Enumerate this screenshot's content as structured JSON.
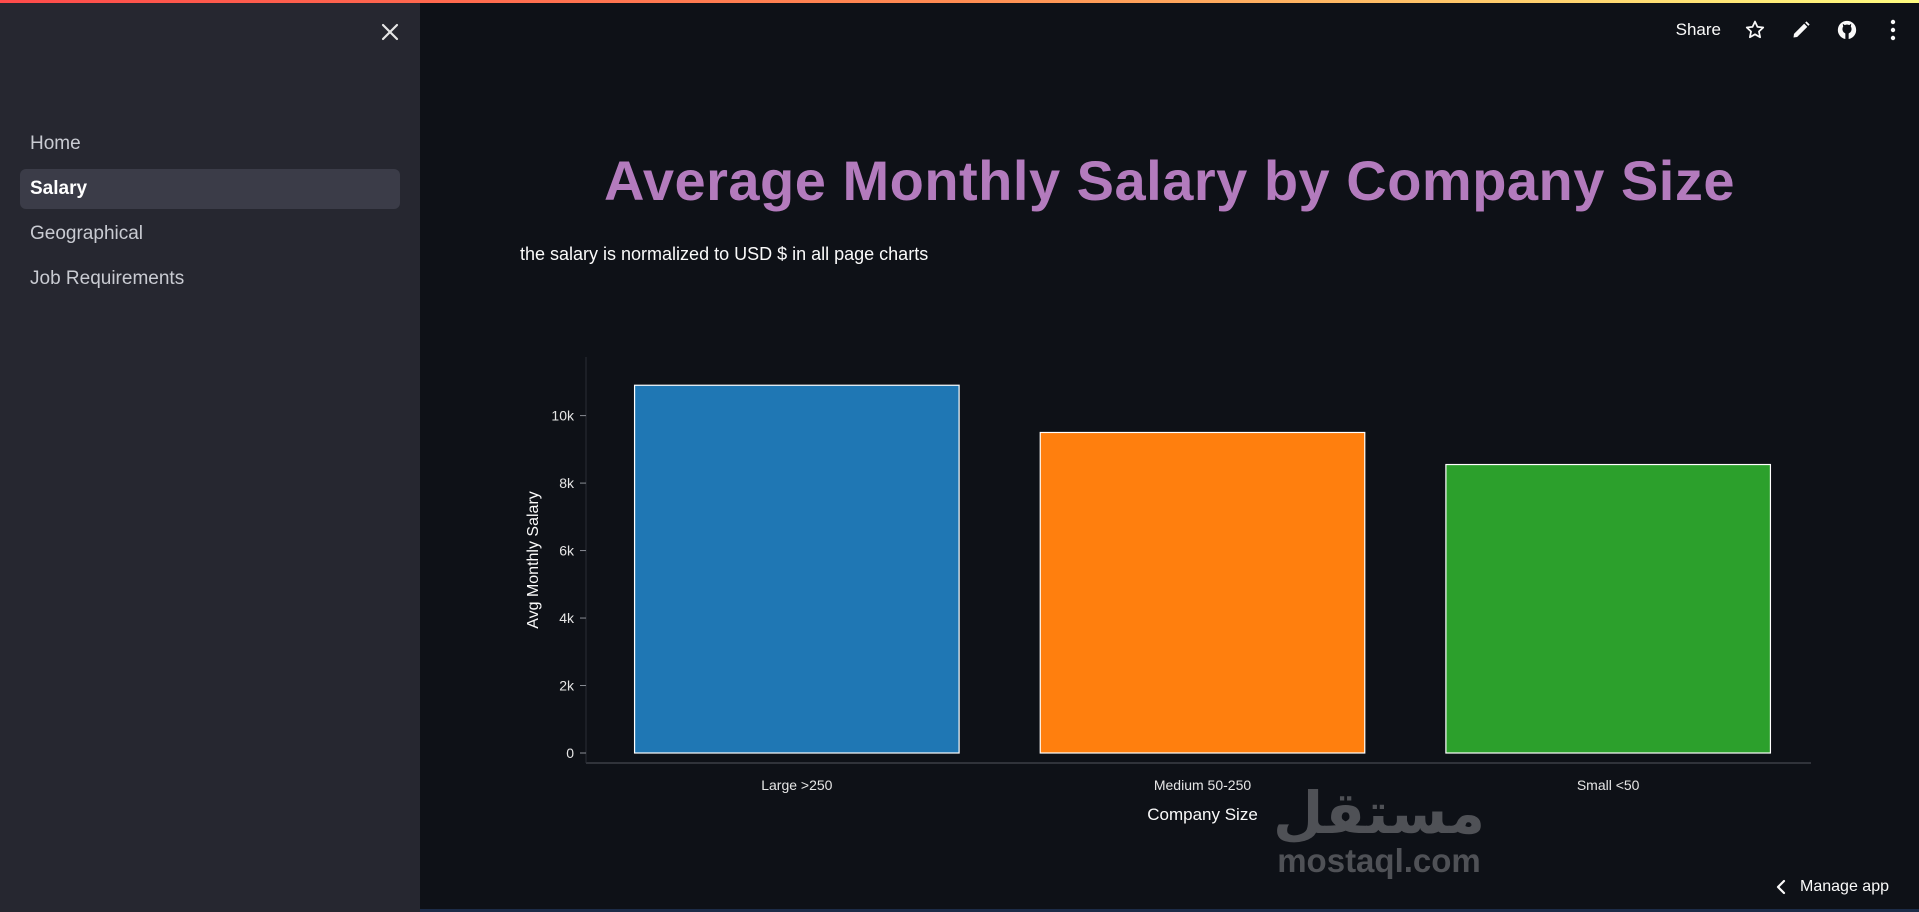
{
  "sidebar": {
    "items": [
      {
        "label": "Home",
        "active": false
      },
      {
        "label": "Salary",
        "active": true
      },
      {
        "label": "Geographical",
        "active": false
      },
      {
        "label": "Job Requirements",
        "active": false
      }
    ]
  },
  "toolbar": {
    "share_label": "Share",
    "icons": [
      "star-icon",
      "pencil-icon",
      "github-icon",
      "more-vertical-icon"
    ]
  },
  "main": {
    "title": "Average Monthly Salary by Company Size",
    "subtitle": "the salary is normalized to USD $ in all page charts"
  },
  "chart_data": {
    "type": "bar",
    "categories": [
      "Large >250",
      "Medium 50-250",
      "Small <50"
    ],
    "values": [
      10900,
      9500,
      8550
    ],
    "colors": [
      "#1f77b4",
      "#ff7f0e",
      "#2ca02c"
    ],
    "xlabel": "Company Size",
    "ylabel": "Avg Monthly Salary",
    "ylim": [
      0,
      11500
    ],
    "yticks": [
      0,
      2000,
      4000,
      6000,
      8000,
      10000
    ],
    "ytick_labels": [
      "0",
      "2k",
      "4k",
      "6k",
      "8k",
      "10k"
    ],
    "grid": false,
    "legend": "none"
  },
  "watermark": {
    "arabic": "مستقل",
    "latin": "mostaql.com"
  },
  "footer": {
    "manage_label": "Manage app"
  }
}
